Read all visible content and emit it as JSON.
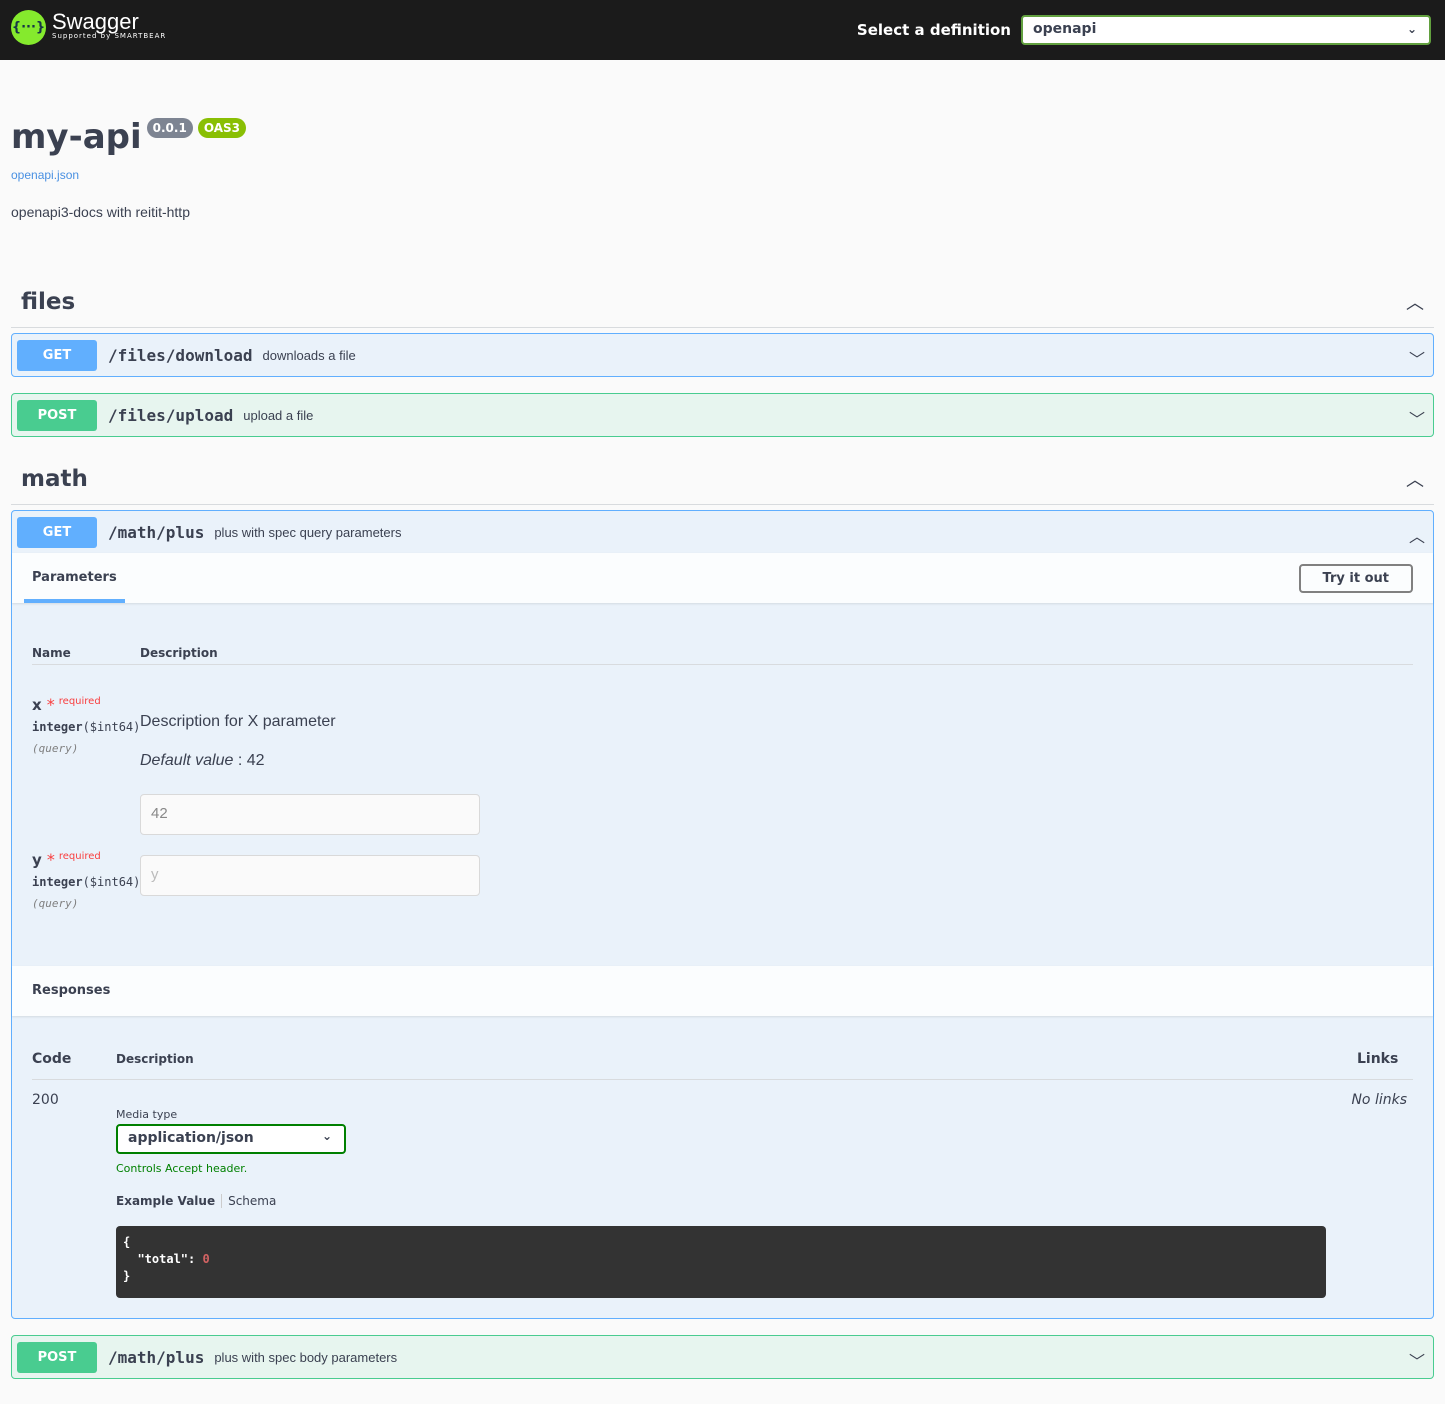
{
  "topbar": {
    "logo_text": "Swagger",
    "logo_sub": "Supported by SMARTBEAR",
    "select_label": "Select a definition",
    "select_value": "openapi"
  },
  "info": {
    "title": "my-api",
    "version": "0.0.1",
    "oas": "OAS3",
    "spec_link": "openapi.json",
    "description": "openapi3-docs with reitit-http"
  },
  "tags": [
    {
      "name": "files",
      "ops": [
        {
          "method": "GET",
          "path": "/files/download",
          "summary": "downloads a file"
        },
        {
          "method": "POST",
          "path": "/files/upload",
          "summary": "upload a file"
        }
      ]
    },
    {
      "name": "math",
      "ops": [
        {
          "method": "GET",
          "path": "/math/plus",
          "summary": "plus with spec query parameters"
        },
        {
          "method": "POST",
          "path": "/math/plus",
          "summary": "plus with spec body parameters"
        }
      ]
    }
  ],
  "expanded": {
    "parameters_tab": "Parameters",
    "try_button": "Try it out",
    "col_name": "Name",
    "col_description": "Description",
    "params": [
      {
        "name": "x",
        "star": "*",
        "required": "required",
        "type": "integer",
        "format": "($int64)",
        "in": "(query)",
        "description": "Description for X parameter",
        "default_label": "Default value",
        "default_value": ": 42",
        "value": "42",
        "placeholder": ""
      },
      {
        "name": "y",
        "star": "*",
        "required": "required",
        "type": "integer",
        "format": "($int64)",
        "in": "(query)",
        "placeholder": "y"
      }
    ],
    "responses_title": "Responses",
    "col_code": "Code",
    "col_links": "Links",
    "response": {
      "code": "200",
      "media_label": "Media type",
      "media_value": "application/json",
      "controls_note": "Controls Accept header.",
      "example_tab": "Example Value",
      "schema_tab": "Schema",
      "no_links": "No links",
      "example": {
        "open": "{",
        "key": "\"total\"",
        "colon": ": ",
        "val": "0",
        "close": "}"
      }
    }
  },
  "colors": {
    "get": "#61affe",
    "post": "#49cc90",
    "brand": "#85ea2d"
  }
}
